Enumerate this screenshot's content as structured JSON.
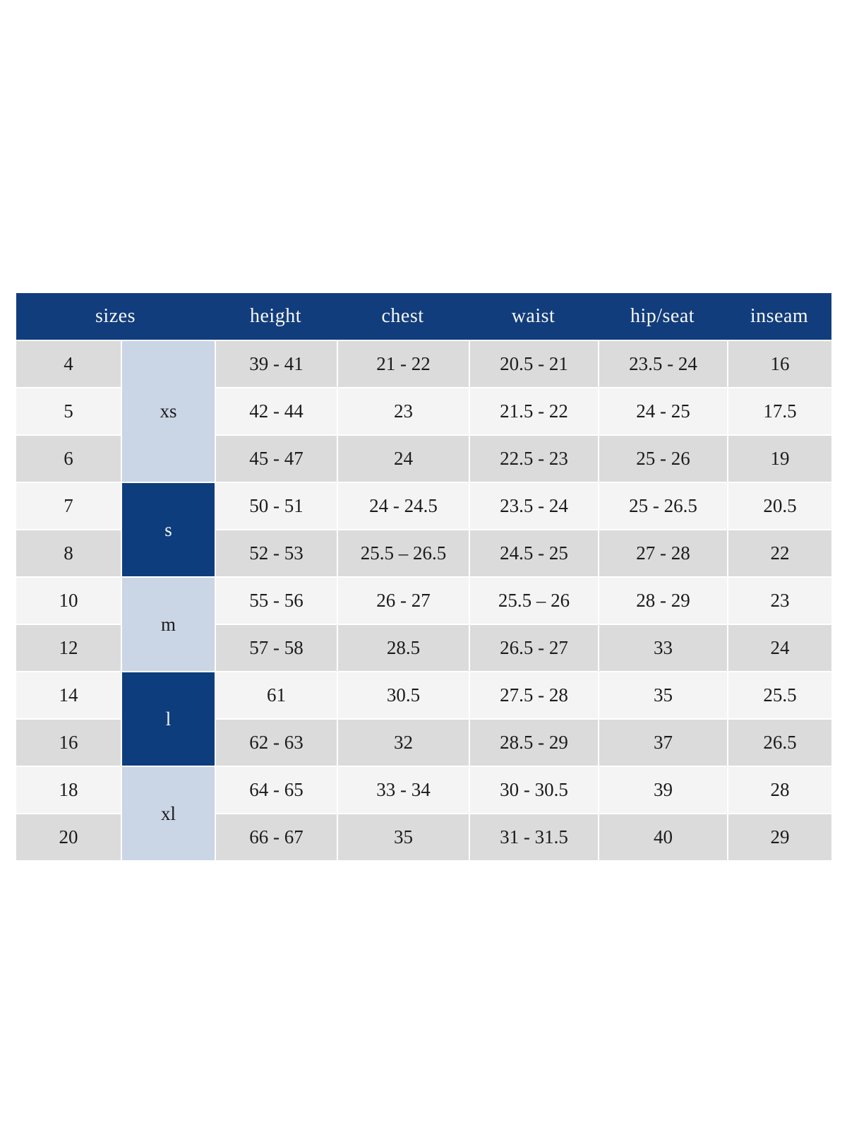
{
  "colors": {
    "page_bg": "#ffffff",
    "header_bg": "#123d7c",
    "header_text": "#f7f7f7",
    "group_dark_bg": "#0d3d7c",
    "group_dark_text": "#f5f5f5",
    "group_light_bg": "#cad5e6",
    "row_shade_a": "#dbdbdb",
    "row_shade_b": "#f4f4f4",
    "cell_text": "#1b1b1b",
    "separator": "#ffffff"
  },
  "table": {
    "headers": [
      "sizes",
      "height",
      "chest",
      "waist",
      "hip/seat",
      "inseam"
    ],
    "groups": [
      {
        "label": "xs",
        "rows": 3,
        "variant": "light"
      },
      {
        "label": "s",
        "rows": 2,
        "variant": "dark"
      },
      {
        "label": "m",
        "rows": 2,
        "variant": "light"
      },
      {
        "label": "l",
        "rows": 2,
        "variant": "dark"
      },
      {
        "label": "xl",
        "rows": 2,
        "variant": "light"
      }
    ],
    "rows": [
      {
        "size": "4",
        "height": "39 - 41",
        "chest": "21 - 22",
        "waist": "20.5 - 21",
        "hip_seat": "23.5 - 24",
        "inseam": "16"
      },
      {
        "size": "5",
        "height": "42 - 44",
        "chest": "23",
        "waist": "21.5 - 22",
        "hip_seat": "24 - 25",
        "inseam": "17.5"
      },
      {
        "size": "6",
        "height": "45 - 47",
        "chest": "24",
        "waist": "22.5 - 23",
        "hip_seat": "25 - 26",
        "inseam": "19"
      },
      {
        "size": "7",
        "height": "50 - 51",
        "chest": "24 - 24.5",
        "waist": "23.5 - 24",
        "hip_seat": "25 - 26.5",
        "inseam": "20.5"
      },
      {
        "size": "8",
        "height": "52 - 53",
        "chest": "25.5 – 26.5",
        "waist": "24.5 - 25",
        "hip_seat": "27 - 28",
        "inseam": "22"
      },
      {
        "size": "10",
        "height": "55 - 56",
        "chest": "26 - 27",
        "waist": "25.5 – 26",
        "hip_seat": "28 - 29",
        "inseam": "23"
      },
      {
        "size": "12",
        "height": "57 - 58",
        "chest": "28.5",
        "waist": "26.5 - 27",
        "hip_seat": "33",
        "inseam": "24"
      },
      {
        "size": "14",
        "height": "61",
        "chest": "30.5",
        "waist": "27.5 - 28",
        "hip_seat": "35",
        "inseam": "25.5"
      },
      {
        "size": "16",
        "height": "62 - 63",
        "chest": "32",
        "waist": "28.5 - 29",
        "hip_seat": "37",
        "inseam": "26.5"
      },
      {
        "size": "18",
        "height": "64 - 65",
        "chest": "33 - 34",
        "waist": "30 - 30.5",
        "hip_seat": "39",
        "inseam": "28"
      },
      {
        "size": "20",
        "height": "66 - 67",
        "chest": "35",
        "waist": "31 - 31.5",
        "hip_seat": "40",
        "inseam": "29"
      }
    ]
  }
}
